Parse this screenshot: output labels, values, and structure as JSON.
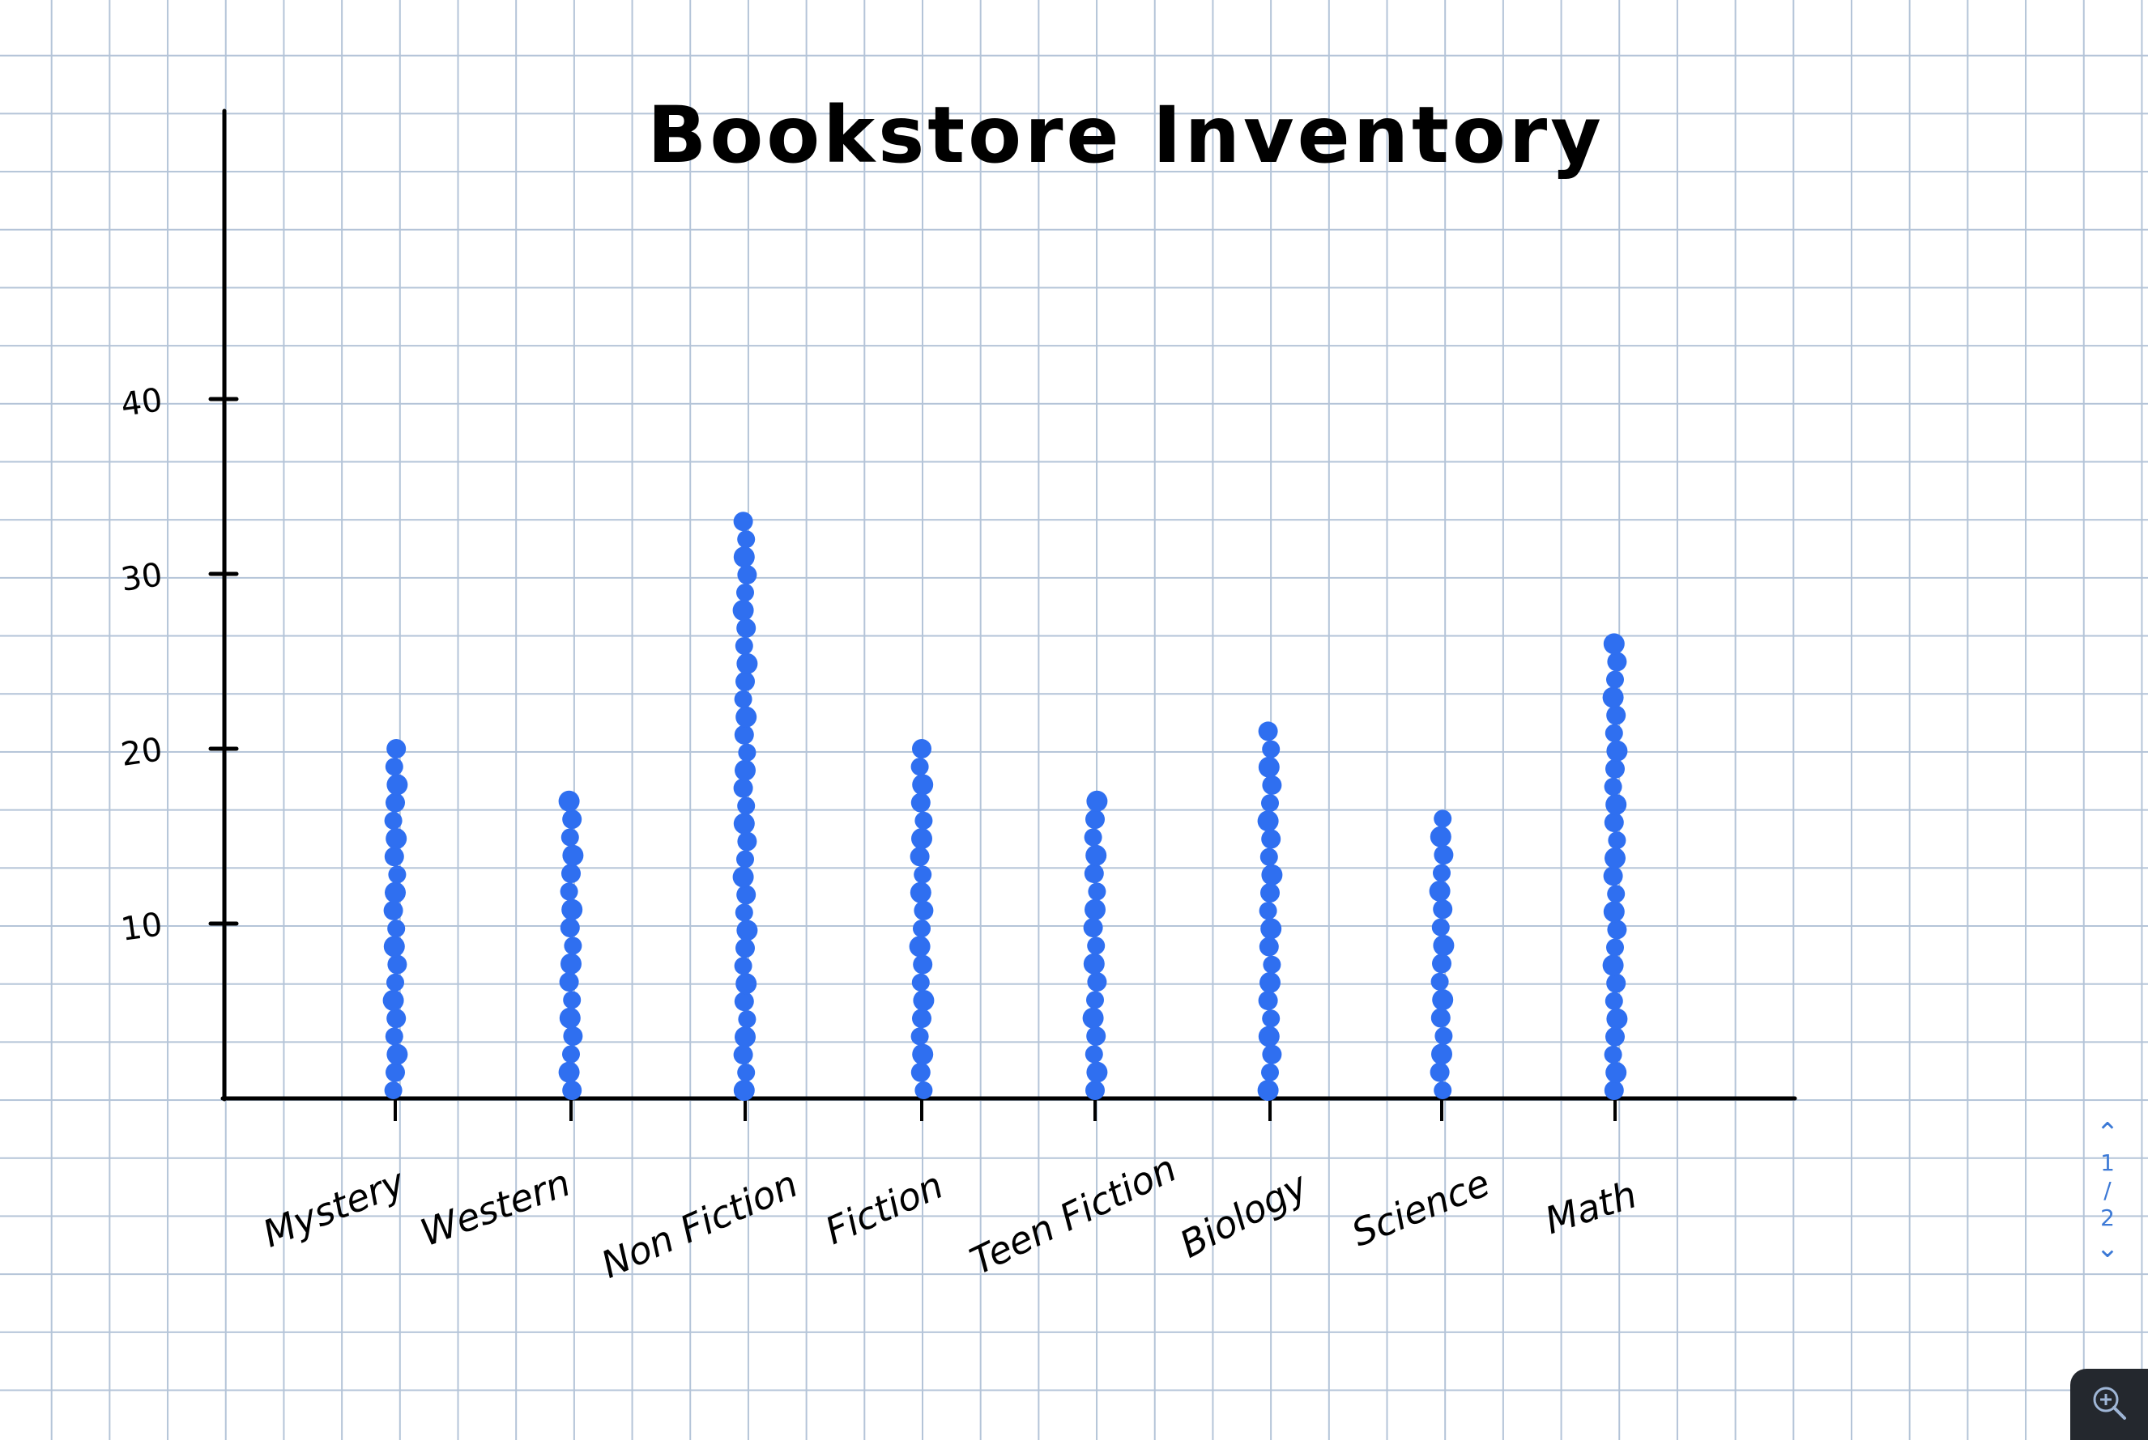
{
  "chart_data": {
    "type": "scatter",
    "title": "Bookstore Inventory",
    "categories": [
      "Mystery",
      "Western",
      "Non Fiction",
      "Fiction",
      "Teen Fiction",
      "Biology",
      "Science",
      "Math"
    ],
    "values": [
      20,
      17,
      33,
      20,
      17,
      21,
      16,
      26
    ],
    "y_ticks": [
      "10",
      "20",
      "30",
      "40"
    ],
    "ylim": [
      0,
      50
    ],
    "xlabel": "",
    "ylabel": "",
    "grid": false,
    "marker": "stacked dots (one dot per book)",
    "dot_color": "#2f6ff0"
  },
  "pager": {
    "up_icon": "chevron-up-icon",
    "current": "1",
    "separator": "/",
    "total": "2",
    "down_icon": "chevron-down-icon"
  },
  "zoom": {
    "icon": "zoom-in-icon"
  },
  "colors": {
    "paper": "#ffffff",
    "grid": "#b4c4d8",
    "ink": "#000000",
    "accent": "#3d7ad6"
  }
}
